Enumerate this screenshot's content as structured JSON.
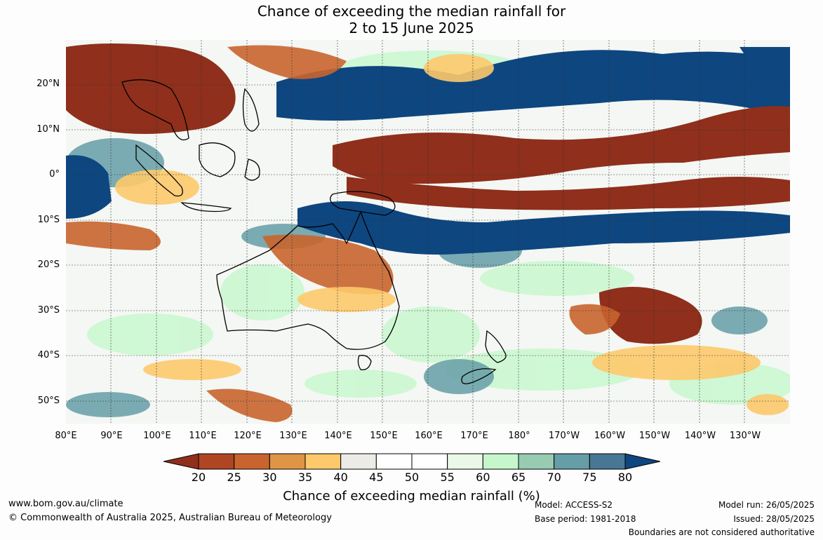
{
  "title_line1": "Chance of exceeding the median rainfall for",
  "title_line2": "2 to 15 June 2025",
  "lat_labels": [
    "20°N",
    "10°N",
    "0°",
    "10°S",
    "20°S",
    "30°S",
    "40°S",
    "50°S"
  ],
  "lon_labels": [
    "80°E",
    "90°E",
    "100°E",
    "110°E",
    "120°E",
    "130°E",
    "140°E",
    "150°E",
    "160°E",
    "170°E",
    "180°",
    "170°W",
    "160°W",
    "150°W",
    "140°W",
    "130°W"
  ],
  "colorbar": {
    "ticks": [
      "20",
      "25",
      "30",
      "35",
      "40",
      "45",
      "50",
      "55",
      "60",
      "65",
      "70",
      "75",
      "80"
    ],
    "colors": [
      "#8f2f1c",
      "#b04523",
      "#c9642e",
      "#e09446",
      "#fdc96b",
      "#edebe6",
      "#ffffff",
      "#ffffff",
      "#eaf8ea",
      "#c6f7cc",
      "#97cbb2",
      "#659ea6",
      "#477795",
      "#0e4680"
    ],
    "title": "Chance of exceeding median rainfall (%)"
  },
  "footer": {
    "website": "www.bom.gov.au/climate",
    "copyright": "© Commonwealth of Australia 2025, Australian Bureau of Meteorology",
    "model": "Model: ACCESS-S2",
    "base_period": "Base period: 1981-2018",
    "model_run": "Model run: 26/05/2025",
    "issued": "Issued: 28/05/2025",
    "disclaimer": "Boundaries are not considered authoritative"
  }
}
